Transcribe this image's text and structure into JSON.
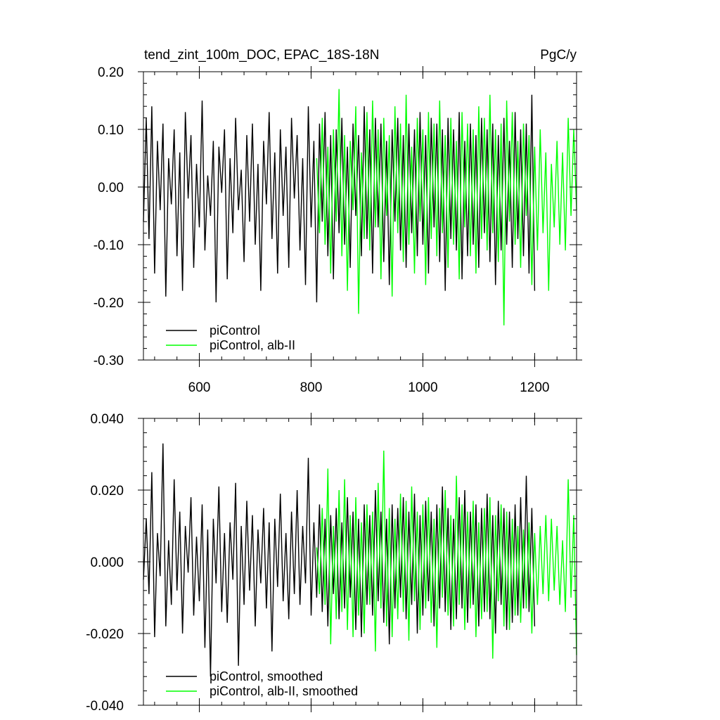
{
  "header": {
    "title": "tend_zint_100m_DOC, EPAC_18S-18N",
    "units": "PgC/y"
  },
  "colors": {
    "pi_control": "#000000",
    "alb_ii": "#00ff00"
  },
  "chart_data": [
    {
      "type": "line",
      "title": "tend_zint_100m_DOC, EPAC_18S-18N",
      "units": "PgC/y",
      "xlabel": "",
      "ylabel": "",
      "xlim": [
        500,
        1275
      ],
      "ylim": [
        -0.3,
        0.2
      ],
      "x_ticks": [
        600,
        800,
        1000,
        1200
      ],
      "x_tick_labels": [
        "600",
        "800",
        "1000",
        "1200"
      ],
      "y_ticks": [
        0.2,
        0.1,
        0.0,
        -0.1,
        -0.2,
        -0.3
      ],
      "y_tick_labels": [
        "0.20",
        "0.10",
        "0.00",
        "-0.10",
        "-0.20",
        "-0.30"
      ],
      "legend": "bottom-left",
      "grid": false,
      "series": [
        {
          "name": "piControl",
          "color": "#000000",
          "x_start": 500,
          "x_end": 1200,
          "step": 5,
          "values": [
            -0.06,
            0.12,
            -0.09,
            0.14,
            -0.15,
            0.08,
            -0.04,
            0.11,
            -0.19,
            0.05,
            -0.03,
            0.1,
            -0.12,
            0.06,
            -0.18,
            0.13,
            -0.02,
            0.09,
            -0.14,
            0.04,
            -0.07,
            0.15,
            -0.11,
            0.02,
            -0.05,
            0.08,
            -0.2,
            0.07,
            -0.01,
            0.1,
            -0.16,
            0.05,
            -0.08,
            0.12,
            -0.04,
            0.03,
            -0.13,
            0.09,
            -0.06,
            0.11,
            -0.1,
            0.04,
            -0.18,
            0.08,
            -0.03,
            0.13,
            -0.09,
            0.06,
            -0.15,
            0.1,
            -0.05,
            0.07,
            -0.14,
            0.12,
            -0.02,
            0.09,
            -0.11,
            0.05,
            -0.17,
            0.14,
            -0.07,
            0.08,
            -0.2,
            0.11,
            -0.06,
            0.13,
            -0.12,
            0.09,
            -0.16,
            0.1,
            -0.08,
            0.12,
            -0.1,
            0.07,
            -0.14,
            0.11,
            -0.05,
            0.09,
            -0.12,
            0.14,
            -0.09,
            0.1,
            -0.15,
            0.12,
            -0.07,
            0.11,
            -0.13,
            0.08,
            -0.17,
            0.1,
            -0.06,
            0.12,
            -0.11,
            0.09,
            -0.14,
            0.11,
            -0.08,
            0.1,
            -0.12,
            0.13,
            -0.1,
            0.09,
            -0.15,
            0.12,
            -0.07,
            0.11,
            -0.13,
            0.1,
            -0.18,
            0.12,
            -0.09,
            0.1,
            -0.11,
            0.13,
            -0.16,
            0.08,
            -0.12,
            0.11,
            -0.1,
            0.09,
            -0.14,
            0.12,
            -0.08,
            0.1,
            -0.13,
            0.11,
            -0.17,
            0.09,
            -0.11,
            0.12,
            -0.1,
            0.08,
            -0.14,
            0.13,
            -0.09,
            0.1,
            -0.12,
            0.11,
            -0.15,
            0.16,
            -0.18
          ]
        },
        {
          "name": "piControl, alb-II",
          "color": "#00ff00",
          "x_start": 810,
          "x_end": 1275,
          "step": 5,
          "values": [
            0.05,
            -0.08,
            0.12,
            -0.1,
            0.07,
            -0.15,
            0.1,
            -0.06,
            0.17,
            -0.12,
            0.09,
            -0.18,
            0.08,
            -0.04,
            0.14,
            -0.22,
            0.06,
            -0.09,
            0.13,
            -0.11,
            0.15,
            -0.07,
            0.1,
            -0.16,
            0.12,
            -0.05,
            0.09,
            -0.19,
            0.14,
            -0.08,
            0.11,
            -0.13,
            0.16,
            -0.1,
            0.07,
            -0.15,
            0.12,
            -0.06,
            0.1,
            -0.17,
            0.13,
            -0.09,
            0.11,
            -0.12,
            0.15,
            -0.08,
            0.09,
            -0.14,
            0.12,
            -0.1,
            0.08,
            -0.16,
            0.13,
            -0.07,
            0.11,
            -0.12,
            0.1,
            -0.15,
            0.14,
            -0.09,
            0.12,
            -0.11,
            0.16,
            -0.08,
            0.1,
            -0.13,
            0.11,
            -0.24,
            0.15,
            -0.06,
            0.13,
            -0.1,
            0.08,
            -0.14,
            0.11,
            -0.05,
            0.09,
            -0.17,
            0.07,
            -0.11,
            0.1,
            -0.08,
            0.06,
            -0.18,
            0.04,
            -0.07,
            0.08,
            -0.1,
            0.06,
            -0.11,
            0.12,
            -0.05,
            0.1,
            -0.04
          ]
        }
      ]
    },
    {
      "type": "line",
      "title": "",
      "xlabel": "",
      "ylabel": "",
      "xlim": [
        500,
        1275
      ],
      "ylim": [
        -0.04,
        0.04
      ],
      "x_ticks": [
        600,
        800,
        1000,
        1200
      ],
      "x_tick_labels": [],
      "y_ticks": [
        0.04,
        0.02,
        0.0,
        -0.02,
        -0.04
      ],
      "y_tick_labels": [
        "0.040",
        "0.020",
        "0.000",
        "-0.020",
        "-0.040"
      ],
      "legend": "bottom-left",
      "grid": false,
      "series": [
        {
          "name": "piControl, smoothed",
          "color": "#000000",
          "x_start": 500,
          "x_end": 1200,
          "step": 5,
          "values": [
            -0.005,
            0.012,
            -0.009,
            0.025,
            -0.021,
            0.008,
            -0.004,
            0.033,
            -0.018,
            0.006,
            -0.012,
            0.023,
            -0.008,
            0.014,
            -0.02,
            0.01,
            -0.003,
            0.018,
            -0.015,
            0.007,
            -0.011,
            0.016,
            -0.024,
            0.009,
            -0.032,
            0.012,
            -0.006,
            0.021,
            -0.014,
            0.008,
            -0.017,
            0.011,
            -0.005,
            0.022,
            -0.029,
            0.01,
            -0.012,
            0.017,
            -0.008,
            0.013,
            -0.018,
            0.009,
            -0.006,
            0.015,
            -0.013,
            0.011,
            -0.025,
            0.012,
            -0.007,
            0.019,
            -0.011,
            0.008,
            -0.016,
            0.014,
            -0.009,
            0.02,
            -0.012,
            0.01,
            -0.006,
            0.029,
            -0.015,
            0.011,
            -0.01,
            0.016,
            -0.014,
            0.012,
            -0.018,
            0.013,
            -0.009,
            0.015,
            -0.016,
            0.011,
            -0.013,
            0.018,
            -0.01,
            0.014,
            -0.019,
            0.012,
            -0.021,
            0.016,
            -0.012,
            0.013,
            -0.015,
            0.02,
            -0.011,
            0.014,
            -0.017,
            0.012,
            -0.023,
            0.016,
            -0.013,
            0.015,
            -0.01,
            0.018,
            -0.016,
            0.014,
            -0.012,
            0.019,
            -0.02,
            0.013,
            -0.015,
            0.017,
            -0.011,
            0.014,
            -0.018,
            0.016,
            -0.013,
            0.021,
            -0.014,
            0.015,
            -0.019,
            0.012,
            -0.016,
            0.018,
            -0.013,
            0.02,
            -0.017,
            0.014,
            -0.012,
            0.016,
            -0.018,
            0.015,
            -0.014,
            0.019,
            -0.016,
            0.013,
            -0.02,
            0.017,
            -0.012,
            0.015,
            -0.019,
            0.014,
            -0.017,
            0.016,
            -0.015,
            0.018,
            -0.013,
            0.024,
            -0.014,
            0.015,
            -0.018
          ]
        },
        {
          "name": "piControl, alb-II, smoothed",
          "color": "#00ff00",
          "x_start": 810,
          "x_end": 1275,
          "step": 5,
          "values": [
            0.004,
            -0.009,
            0.015,
            -0.012,
            0.026,
            -0.023,
            0.01,
            -0.016,
            0.02,
            -0.014,
            0.023,
            -0.019,
            0.013,
            -0.021,
            0.018,
            -0.015,
            0.011,
            -0.02,
            0.016,
            -0.012,
            0.014,
            -0.025,
            0.022,
            -0.013,
            0.031,
            -0.018,
            0.015,
            -0.021,
            0.012,
            -0.016,
            0.019,
            -0.014,
            0.017,
            -0.022,
            0.021,
            -0.011,
            0.014,
            -0.019,
            0.016,
            -0.013,
            0.018,
            -0.017,
            0.012,
            -0.024,
            0.015,
            -0.01,
            0.02,
            -0.015,
            0.013,
            -0.018,
            0.024,
            -0.012,
            0.016,
            -0.019,
            0.014,
            -0.013,
            0.017,
            -0.021,
            0.011,
            -0.016,
            0.015,
            -0.014,
            0.018,
            -0.027,
            0.013,
            -0.011,
            0.016,
            -0.018,
            0.014,
            -0.019,
            0.012,
            -0.015,
            0.01,
            -0.017,
            0.009,
            -0.013,
            0.011,
            -0.02,
            0.008,
            -0.012,
            0.01,
            -0.009,
            0.013,
            -0.011,
            0.012,
            -0.008,
            0.01,
            -0.012,
            0.006,
            -0.014,
            0.023,
            -0.01,
            0.013,
            -0.026
          ]
        }
      ]
    }
  ]
}
